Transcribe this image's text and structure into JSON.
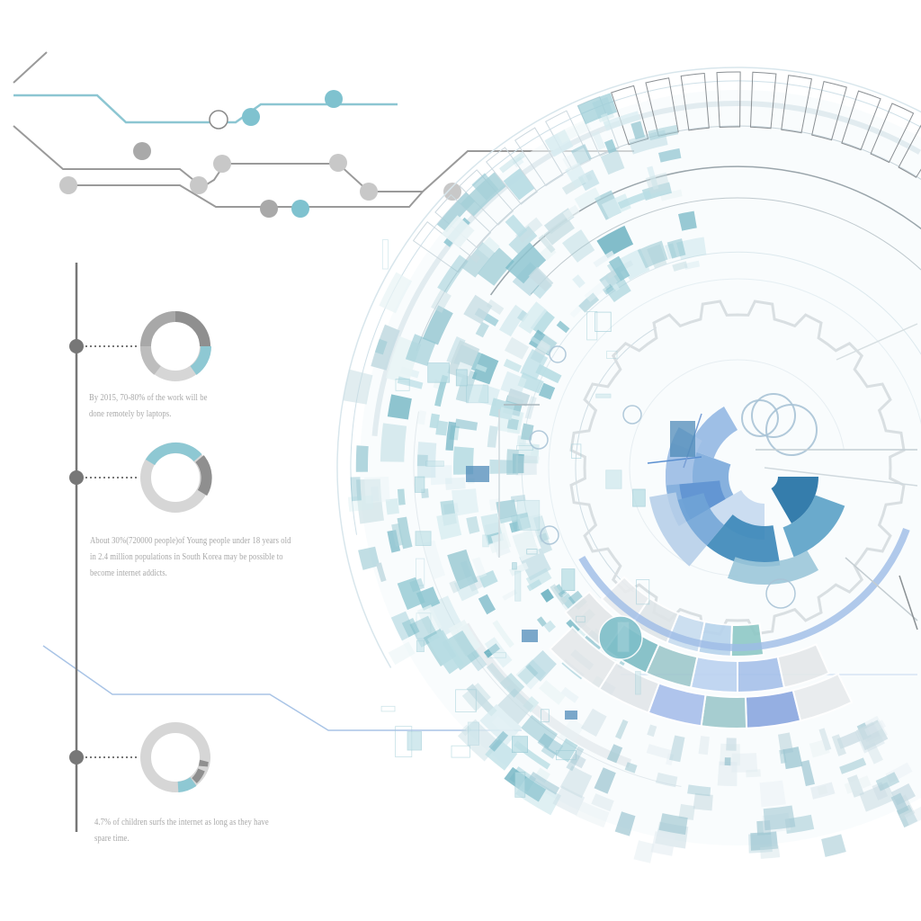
{
  "timeline": {
    "items": [
      {
        "lines": [
          "By 2015, 70-80% of the work will be",
          "done remotely by laptops."
        ],
        "donut_fill": 0.75
      },
      {
        "lines": [
          "About 30%(720000 people)of Young people under 18 years old",
          "in 2.4 million populations in South Korea may be possible to",
          "become internet addicts."
        ],
        "donut_fill": 0.3
      },
      {
        "lines": [
          "4.7% of children surfs the internet as long as they have",
          "spare time."
        ],
        "donut_fill": 0.047
      }
    ]
  },
  "colors": {
    "teal": "#7fc2cf",
    "light_teal": "#b5dde4",
    "blue": "#5a8fd0",
    "dark_blue": "#2a6fa8",
    "gray": "#9a9a9a",
    "light_gray": "#cfcfcf",
    "text_gray": "#a8a8a8"
  }
}
